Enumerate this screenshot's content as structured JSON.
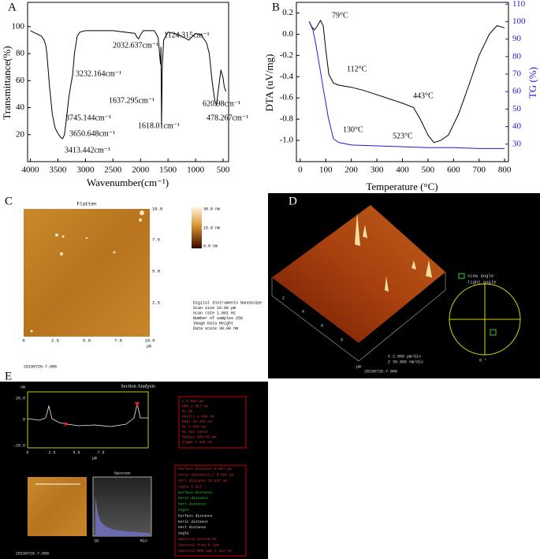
{
  "chart_data": [
    {
      "type": "line",
      "letter": "A",
      "x_label": "Wavenumber(cm⁻¹)",
      "y_label": "Transmittance(%)",
      "x": [
        4000,
        3900,
        3800,
        3750,
        3720,
        3700,
        3650,
        3600,
        3550,
        3500,
        3450,
        3413,
        3380,
        3350,
        3300,
        3260,
        3232,
        3200,
        3150,
        3100,
        3000,
        2500,
        2100,
        2060,
        2032,
        2000,
        1950,
        1750,
        1680,
        1637,
        1628,
        1618,
        1605,
        1580,
        1500,
        1300,
        1124,
        1000,
        900,
        800,
        750,
        700,
        650,
        621,
        580,
        540,
        500,
        478,
        450
      ],
      "values": [
        97,
        95,
        93,
        90,
        86,
        80,
        55,
        35,
        25,
        21,
        18,
        17,
        20,
        30,
        48,
        58,
        64,
        80,
        93,
        96,
        97,
        97,
        95,
        92,
        91,
        94,
        97,
        97,
        92,
        72,
        85,
        26,
        70,
        90,
        96,
        94,
        90,
        95,
        94,
        88,
        80,
        60,
        45,
        42,
        55,
        68,
        62,
        55,
        52
      ],
      "color": "#000000",
      "xlim": [
        4050,
        400
      ],
      "ylim": [
        0,
        118
      ],
      "xticks": [
        4000,
        3500,
        3000,
        2500,
        2000,
        1500,
        1000,
        500
      ],
      "yticks": [
        20,
        40,
        60,
        80,
        100
      ],
      "annotations": [
        "2032.637cm⁻¹",
        "1124.315cm⁻¹",
        "3232.164cm⁻¹",
        "1637.295cm⁻¹",
        "620.98cm⁻¹",
        "3745.144cm⁻¹",
        "1618.01cm⁻¹",
        "478.267cm⁻¹",
        "3650.648cm⁻¹",
        "3413.442cm⁻¹"
      ]
    },
    {
      "type": "line",
      "letter": "B",
      "x_label": "Temperature (°C)",
      "y_label": "DTA (uV/mg)",
      "y2_label": "TG (%)",
      "series": [
        {
          "color": "#000000",
          "axis": "y",
          "x": [
            35,
            45,
            55,
            65,
            79,
            90,
            100,
            112,
            130,
            150,
            200,
            250,
            300,
            350,
            400,
            443,
            470,
            500,
            523,
            550,
            580,
            620,
            660,
            700,
            740,
            770,
            800
          ],
          "values": [
            0.12,
            0.07,
            0.04,
            0.07,
            0.13,
            0.08,
            -0.15,
            -0.38,
            -0.46,
            -0.48,
            -0.5,
            -0.53,
            -0.57,
            -0.61,
            -0.65,
            -0.69,
            -0.8,
            -0.95,
            -1.02,
            -1.0,
            -0.95,
            -0.75,
            -0.48,
            -0.2,
            0.0,
            0.08,
            0.06
          ]
        },
        {
          "color": "#1f1fd6",
          "axis": "y2",
          "x": [
            35,
            50,
            60,
            75,
            90,
            110,
            130,
            150,
            200,
            300,
            400,
            500,
            600,
            700,
            800
          ],
          "values": [
            100,
            95,
            88,
            75,
            62,
            45,
            33,
            31,
            29.5,
            29,
            28.5,
            28,
            28,
            27.5,
            27.5
          ]
        }
      ],
      "xlim": [
        -15,
        815
      ],
      "ylim": [
        -1.2,
        0.3
      ],
      "y2lim": [
        20,
        111
      ],
      "xticks": [
        0,
        100,
        200,
        300,
        400,
        500,
        600,
        700,
        800
      ],
      "yticks": [
        0.2,
        {
          "value": 0,
          "label": "0.0"
        },
        -0.2,
        -0.4,
        -0.6,
        -0.8,
        {
          "value": -1,
          "label": "-1.0"
        }
      ],
      "y2ticks": [
        30,
        40,
        50,
        60,
        70,
        80,
        90,
        100,
        110
      ],
      "annotations": [
        "79°C",
        "112°C",
        "443°C",
        "130°C",
        "523°C"
      ]
    }
  ],
  "panels": {
    "C": {
      "letter": "C",
      "title": "Flatten",
      "colorbar": [
        "30.0 nm",
        "15.0 nm",
        "0.0 nm"
      ],
      "y_ticks": [
        "10.0",
        "7.5",
        "5.0",
        "2.5"
      ],
      "x_ticks": [
        "0",
        "2.5",
        "5.0",
        "7.5",
        "10.0"
      ],
      "x_unit": "µm",
      "info": [
        "Digital Instruments NanoScope",
        "Scan size   10.00 µm",
        "Scan rate   1.001 Hz",
        "Number of samples   256",
        "Image Data   Height",
        "Data scale   30.00 nm"
      ],
      "footer": "20190726-7.000"
    },
    "D": {
      "letter": "D",
      "view": "view angle",
      "light": "light angle",
      "axis_ticks": [
        "2",
        "4",
        "6",
        "8"
      ],
      "axis_unit": "µm",
      "scale": [
        "X  2.000 µm/div",
        "Z  30.000 nm/div"
      ],
      "angle": "0 °",
      "footer": "20190726-7.000"
    },
    "E": {
      "letter": "E",
      "title": "Section Analysis",
      "y_unit": "nm",
      "y_ticks": [
        "20.0",
        "0",
        "-20.0"
      ],
      "x_ticks": [
        "0",
        "2.5",
        "5.0",
        "7.5"
      ],
      "x_unit": "µm",
      "stats": [
        "L      5.684 µm",
        "RMS    3.367 nm",
        "Ic     DC",
        "Ra(Ic)  1.896 nm",
        "Rmax   19.478 nm",
        "Rz     9.300 nm",
        "Rz Cnt  valid",
        "Radius  256.05 µm",
        "Sigma   2.338 nm"
      ],
      "cursor_stats": [
        "Surface distance   5.867 µm",
        "Horiz distance(L)  5.684 µm",
        "Vert distance   13.837 nm",
        "Angle   0.213 °",
        "Surface distance",
        "Horiz distance",
        "Vert distance",
        "Angle",
        "Surface distance",
        "Horiz distance",
        "Vert distance",
        "Angle",
        "Spectral period   DC",
        "Spectral freq   0 /µm",
        "Spectral RMS amp   2.411 nm"
      ],
      "spectrum": "Spectrum",
      "spectrum_ticks": [
        "DC",
        "Min"
      ],
      "footer": "20190726-7.000"
    }
  }
}
